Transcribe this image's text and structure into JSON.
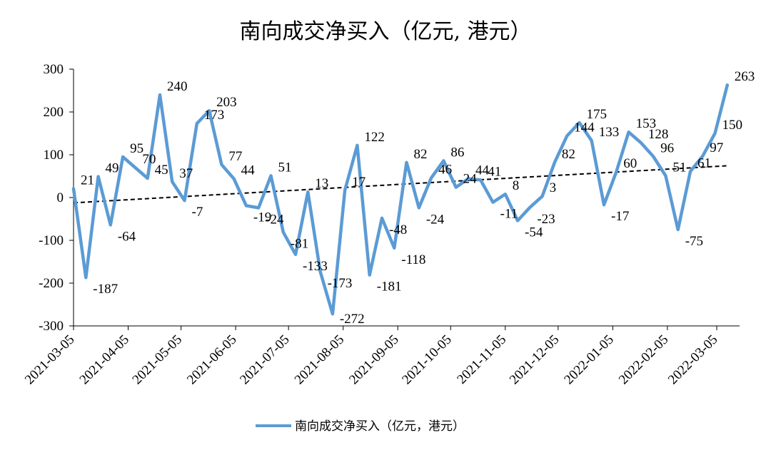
{
  "chart_data": {
    "type": "line",
    "title": "南向成交净买入（亿元, 港元）",
    "xlabel": "",
    "ylabel": "",
    "ylim": [
      -300,
      300
    ],
    "yticks": [
      "300",
      "200",
      "100",
      "0",
      "-100",
      "-200",
      "-300"
    ],
    "x_ticks": [
      "2021-03-05",
      "2021-04-05",
      "2021-05-05",
      "2021-06-05",
      "2021-07-05",
      "2021-08-05",
      "2021-09-05",
      "2021-10-05",
      "2021-11-05",
      "2021-12-05",
      "2022-01-05",
      "2022-02-05",
      "2022-03-05"
    ],
    "x": [
      "2021-03-05",
      "2021-03-12",
      "2021-03-19",
      "2021-03-26",
      "2021-04-02",
      "2021-04-09",
      "2021-04-16",
      "2021-04-23",
      "2021-04-30",
      "2021-05-07",
      "2021-05-14",
      "2021-05-21",
      "2021-05-28",
      "2021-06-04",
      "2021-06-11",
      "2021-06-18",
      "2021-06-25",
      "2021-07-02",
      "2021-07-09",
      "2021-07-16",
      "2021-07-23",
      "2021-07-30",
      "2021-08-06",
      "2021-08-13",
      "2021-08-20",
      "2021-08-27",
      "2021-09-03",
      "2021-09-10",
      "2021-09-17",
      "2021-09-24",
      "2021-10-01",
      "2021-10-08",
      "2021-10-15",
      "2021-10-22",
      "2021-10-29",
      "2021-11-05",
      "2021-11-12",
      "2021-11-19",
      "2021-11-26",
      "2021-12-03",
      "2021-12-10",
      "2021-12-17",
      "2021-12-24",
      "2021-12-31",
      "2022-01-07",
      "2022-01-14",
      "2022-01-21",
      "2022-01-28",
      "2022-02-04",
      "2022-02-11",
      "2022-02-18",
      "2022-02-25",
      "2022-03-04",
      "2022-03-11"
    ],
    "series": [
      {
        "name": "南向成交净买入（亿元，港元）",
        "color": "#5B9BD5",
        "values": [
          21,
          -187,
          49,
          -64,
          95,
          70,
          45,
          240,
          37,
          -7,
          173,
          203,
          77,
          44,
          -19,
          -24,
          51,
          -81,
          -133,
          13,
          -173,
          -272,
          17,
          122,
          -181,
          -48,
          -118,
          82,
          -24,
          46,
          86,
          24,
          44,
          41,
          -11,
          8,
          -54,
          -23,
          3,
          82,
          144,
          175,
          133,
          -17,
          60,
          153,
          128,
          96,
          51,
          -75,
          61,
          97,
          150,
          263
        ]
      }
    ],
    "data_labels": [
      "21",
      "-187",
      "49",
      "-64",
      "95",
      "70",
      "45",
      "240",
      "37",
      "-7",
      "173",
      "203",
      "77",
      "44",
      "-19",
      "-24",
      "51",
      "-81",
      "-133",
      "13",
      "-173",
      "-272",
      "17",
      "122",
      "-181",
      "-48",
      "-118",
      "82",
      "-24",
      "46",
      "86",
      "24",
      "44",
      "41",
      "-11",
      "8",
      "-54",
      "-23",
      "3",
      "82",
      "144",
      "175",
      "133",
      "-17",
      "60",
      "153",
      "128",
      "96",
      "51",
      "-75",
      "61",
      "97",
      "150",
      "263"
    ],
    "trendline": {
      "style": "dashed",
      "color": "#000000"
    },
    "legend": {
      "position": "bottom",
      "label": "南向成交净买入（亿元，港元）"
    },
    "grid": false
  }
}
